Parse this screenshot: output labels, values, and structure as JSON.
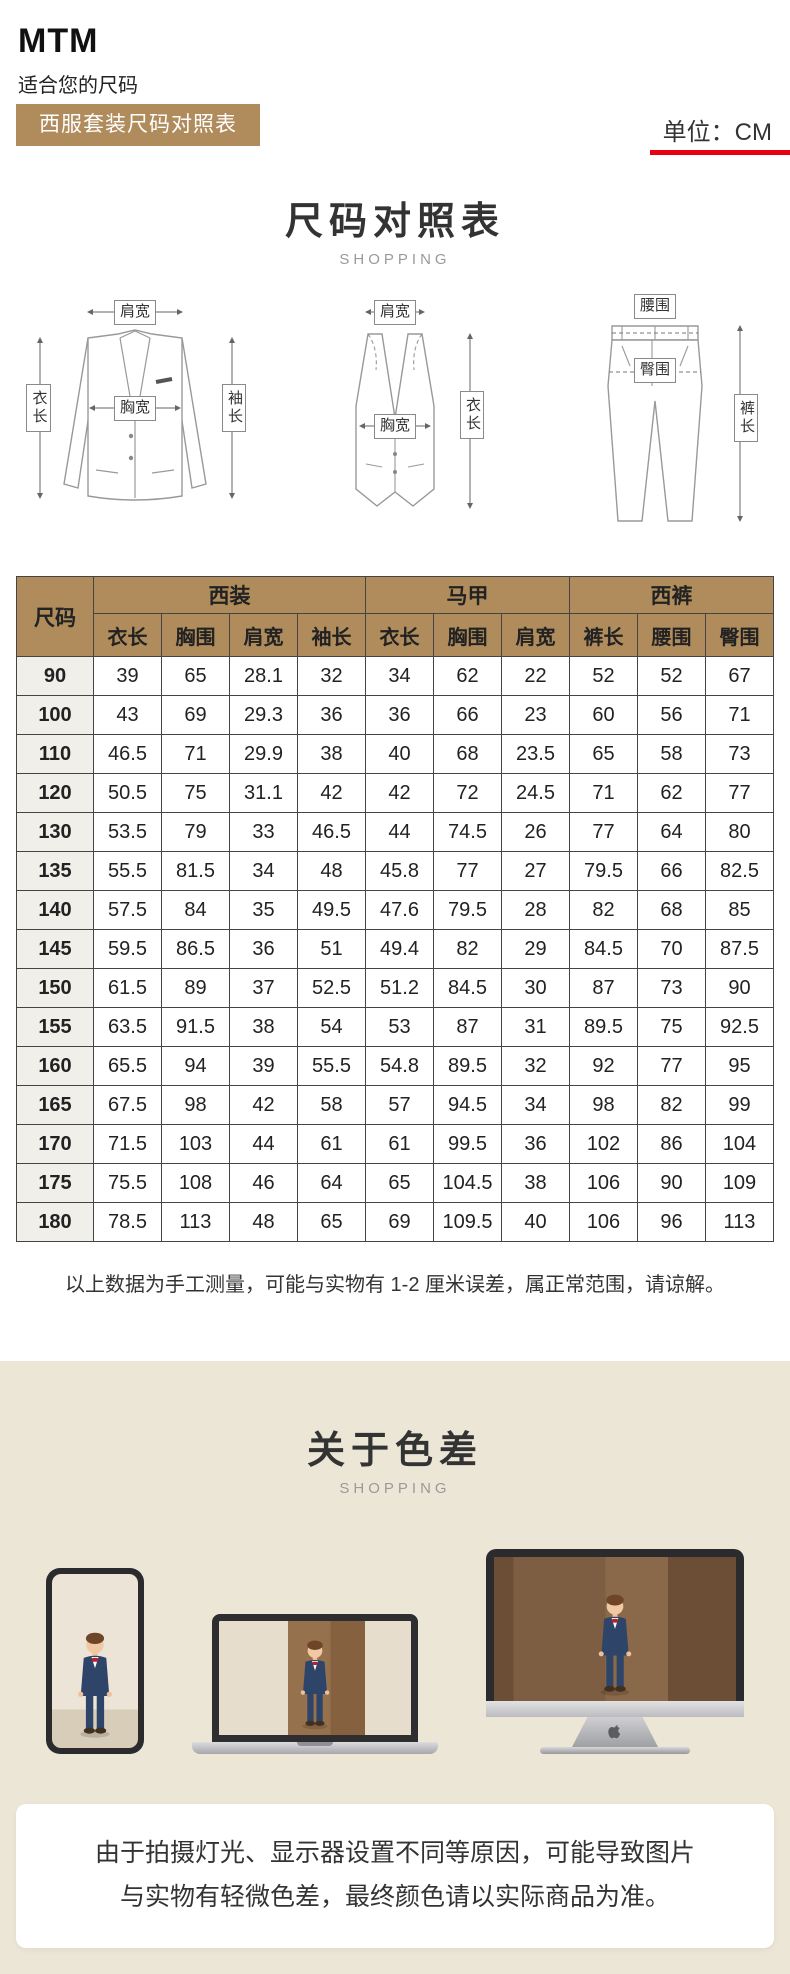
{
  "header": {
    "brand": "MTM",
    "subtitle": "适合您的尺码",
    "banner": "西服套装尺码对照表",
    "unit": "单位：CM"
  },
  "size_section": {
    "title": "尺码对照表",
    "subtitle": "SHOPPING",
    "diagrams": {
      "jacket": {
        "top": "肩宽",
        "left": "衣长",
        "center": "胸宽",
        "right": "袖长"
      },
      "vest": {
        "top": "肩宽",
        "center": "胸宽",
        "right": "衣长"
      },
      "pants": {
        "top": "腰围",
        "middle": "臀围",
        "right": "裤长"
      }
    }
  },
  "chart_data": {
    "type": "table",
    "size_header": "尺码",
    "groups": [
      {
        "label": "西装",
        "columns": [
          "衣长",
          "胸围",
          "肩宽",
          "袖长"
        ]
      },
      {
        "label": "马甲",
        "columns": [
          "衣长",
          "胸围",
          "肩宽"
        ]
      },
      {
        "label": "西裤",
        "columns": [
          "裤长",
          "腰围",
          "臀围"
        ]
      }
    ],
    "rows": [
      {
        "size": "90",
        "values": [
          "39",
          "65",
          "28.1",
          "32",
          "34",
          "62",
          "22",
          "52",
          "52",
          "67"
        ]
      },
      {
        "size": "100",
        "values": [
          "43",
          "69",
          "29.3",
          "36",
          "36",
          "66",
          "23",
          "60",
          "56",
          "71"
        ]
      },
      {
        "size": "110",
        "values": [
          "46.5",
          "71",
          "29.9",
          "38",
          "40",
          "68",
          "23.5",
          "65",
          "58",
          "73"
        ]
      },
      {
        "size": "120",
        "values": [
          "50.5",
          "75",
          "31.1",
          "42",
          "42",
          "72",
          "24.5",
          "71",
          "62",
          "77"
        ]
      },
      {
        "size": "130",
        "values": [
          "53.5",
          "79",
          "33",
          "46.5",
          "44",
          "74.5",
          "26",
          "77",
          "64",
          "80"
        ]
      },
      {
        "size": "135",
        "values": [
          "55.5",
          "81.5",
          "34",
          "48",
          "45.8",
          "77",
          "27",
          "79.5",
          "66",
          "82.5"
        ]
      },
      {
        "size": "140",
        "values": [
          "57.5",
          "84",
          "35",
          "49.5",
          "47.6",
          "79.5",
          "28",
          "82",
          "68",
          "85"
        ]
      },
      {
        "size": "145",
        "values": [
          "59.5",
          "86.5",
          "36",
          "51",
          "49.4",
          "82",
          "29",
          "84.5",
          "70",
          "87.5"
        ]
      },
      {
        "size": "150",
        "values": [
          "61.5",
          "89",
          "37",
          "52.5",
          "51.2",
          "84.5",
          "30",
          "87",
          "73",
          "90"
        ]
      },
      {
        "size": "155",
        "values": [
          "63.5",
          "91.5",
          "38",
          "54",
          "53",
          "87",
          "31",
          "89.5",
          "75",
          "92.5"
        ]
      },
      {
        "size": "160",
        "values": [
          "65.5",
          "94",
          "39",
          "55.5",
          "54.8",
          "89.5",
          "32",
          "92",
          "77",
          "95"
        ]
      },
      {
        "size": "165",
        "values": [
          "67.5",
          "98",
          "42",
          "58",
          "57",
          "94.5",
          "34",
          "98",
          "82",
          "99"
        ]
      },
      {
        "size": "170",
        "values": [
          "71.5",
          "103",
          "44",
          "61",
          "61",
          "99.5",
          "36",
          "102",
          "86",
          "104"
        ]
      },
      {
        "size": "175",
        "values": [
          "75.5",
          "108",
          "46",
          "64",
          "65",
          "104.5",
          "38",
          "106",
          "90",
          "109"
        ]
      },
      {
        "size": "180",
        "values": [
          "78.5",
          "113",
          "48",
          "65",
          "69",
          "109.5",
          "40",
          "106",
          "96",
          "113"
        ]
      }
    ]
  },
  "note": "以上数据为手工测量，可能与实物有 1-2 厘米误差，属正常范围，请谅解。",
  "color_section": {
    "title": "关于色差",
    "subtitle": "SHOPPING",
    "disclaimer_line1": "由于拍摄灯光、显示器设置不同等原因，可能导致图片",
    "disclaimer_line2": "与实物有轻微色差，最终颜色请以实际商品为准。"
  },
  "colors": {
    "tan": "#b08c5c",
    "beige_section": "#ece6d7",
    "accent_red": "#e60012",
    "table_border": "#444444"
  }
}
